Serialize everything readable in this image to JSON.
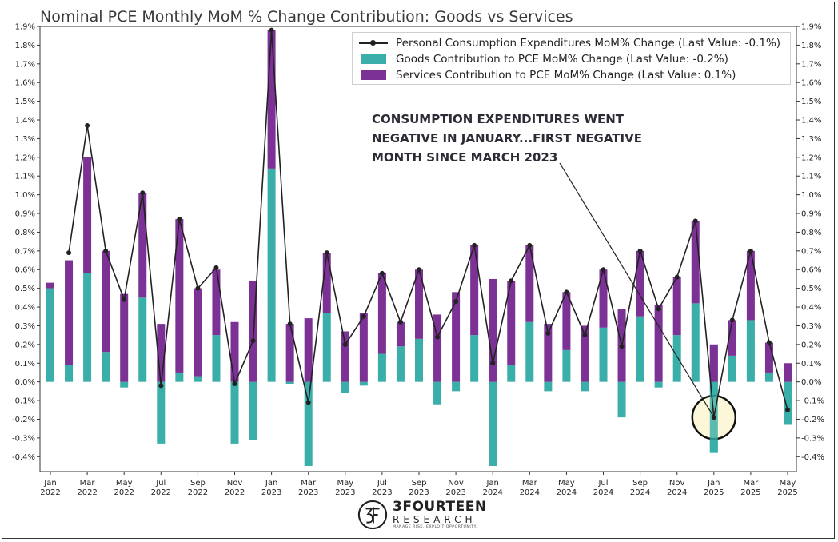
{
  "title": "Nominal PCE Monthly MoM % Change Contribution: Goods vs Services",
  "legend": {
    "pce_label": "Personal Consumption Expenditures MoM% Change (Last Value: -0.1%)",
    "goods_label": "Goods Contribution to PCE MoM% Change (Last Value: -0.2%)",
    "services_label": "Services Contribution to PCE MoM% Change (Last Value: 0.1%)"
  },
  "annotation": "CONSUMPTION EXPENDITURES WENT\nNEGATIVE IN JANUARY...FIRST NEGATIVE\nMONTH SINCE MARCH 2023",
  "logo": {
    "name": "3FOURTEEN",
    "sub": "RESEARCH",
    "tagline": "MANAGE RISK. EXPLOIT OPPORTUNITY."
  },
  "colors": {
    "goods": "#3aafa9",
    "services": "#7b3294",
    "pce_line": "#222222",
    "highlight_fill": "#fbf6d2",
    "highlight_stroke": "#111111"
  },
  "chart_data": {
    "type": "bar",
    "stacked": true,
    "categories": [
      "Jan 2022",
      "Feb 2022",
      "Mar 2022",
      "Apr 2022",
      "May 2022",
      "Jun 2022",
      "Jul 2022",
      "Aug 2022",
      "Sep 2022",
      "Oct 2022",
      "Nov 2022",
      "Dec 2022",
      "Jan 2023",
      "Feb 2023",
      "Mar 2023",
      "Apr 2023",
      "May 2023",
      "Jun 2023",
      "Jul 2023",
      "Aug 2023",
      "Sep 2023",
      "Oct 2023",
      "Nov 2023",
      "Dec 2023",
      "Jan 2024",
      "Feb 2024",
      "Mar 2024",
      "Apr 2024",
      "May 2024",
      "Jun 2024",
      "Jul 2024",
      "Aug 2024",
      "Sep 2024",
      "Oct 2024",
      "Nov 2024",
      "Dec 2024",
      "Jan 2025",
      "Feb 2025",
      "Mar 2025",
      "Apr 2025",
      "May 2025"
    ],
    "x_tick_labels": [
      {
        "month": "Jan",
        "year": "2022"
      },
      {
        "month": "Mar",
        "year": "2022"
      },
      {
        "month": "May",
        "year": "2022"
      },
      {
        "month": "Jul",
        "year": "2022"
      },
      {
        "month": "Sep",
        "year": "2022"
      },
      {
        "month": "Nov",
        "year": "2022"
      },
      {
        "month": "Jan",
        "year": "2023"
      },
      {
        "month": "Mar",
        "year": "2023"
      },
      {
        "month": "May",
        "year": "2023"
      },
      {
        "month": "Jul",
        "year": "2023"
      },
      {
        "month": "Sep",
        "year": "2023"
      },
      {
        "month": "Nov",
        "year": "2023"
      },
      {
        "month": "Jan",
        "year": "2024"
      },
      {
        "month": "Mar",
        "year": "2024"
      },
      {
        "month": "May",
        "year": "2024"
      },
      {
        "month": "Jul",
        "year": "2024"
      },
      {
        "month": "Sep",
        "year": "2024"
      },
      {
        "month": "Nov",
        "year": "2024"
      },
      {
        "month": "Jan",
        "year": "2025"
      },
      {
        "month": "Mar",
        "year": "2025"
      },
      {
        "month": "May",
        "year": "2025"
      }
    ],
    "x_tick_every": 2,
    "series": [
      {
        "name": "Goods Contribution to PCE MoM% Change",
        "kind": "bar",
        "values": [
          0.5,
          0.09,
          0.58,
          0.16,
          -0.03,
          0.45,
          -0.33,
          0.05,
          0.03,
          0.25,
          -0.33,
          -0.31,
          1.14,
          -0.01,
          -0.45,
          0.37,
          -0.06,
          -0.02,
          0.15,
          0.19,
          0.23,
          -0.12,
          -0.05,
          0.25,
          -0.45,
          0.09,
          0.32,
          -0.05,
          0.17,
          -0.05,
          0.29,
          -0.19,
          0.35,
          -0.03,
          0.25,
          0.42,
          -0.38,
          0.14,
          0.33,
          0.05,
          -0.23
        ]
      },
      {
        "name": "Services Contribution to PCE MoM% Change",
        "kind": "bar",
        "values": [
          0.03,
          0.56,
          0.62,
          0.54,
          0.47,
          0.56,
          0.31,
          0.82,
          0.47,
          0.35,
          0.32,
          0.54,
          0.74,
          0.31,
          0.34,
          0.32,
          0.27,
          0.37,
          0.43,
          0.13,
          0.37,
          0.36,
          0.48,
          0.48,
          0.55,
          0.45,
          0.41,
          0.31,
          0.31,
          0.3,
          0.31,
          0.39,
          0.35,
          0.41,
          0.31,
          0.44,
          0.2,
          0.19,
          0.37,
          0.16,
          0.1
        ]
      },
      {
        "name": "Personal Consumption Expenditures MoM% Change",
        "kind": "line",
        "values": [
          null,
          0.69,
          1.37,
          0.7,
          0.44,
          1.01,
          -0.02,
          0.87,
          0.5,
          0.61,
          -0.01,
          0.22,
          1.88,
          0.31,
          -0.11,
          0.69,
          0.2,
          0.35,
          0.58,
          0.32,
          0.6,
          0.24,
          0.43,
          0.73,
          0.1,
          0.54,
          0.73,
          0.26,
          0.48,
          0.25,
          0.6,
          0.19,
          0.7,
          0.39,
          0.56,
          0.86,
          -0.19,
          0.33,
          0.7,
          0.21,
          -0.15
        ]
      }
    ],
    "y_ticks": [
      "-0.4%",
      "-0.3%",
      "-0.2%",
      "-0.1%",
      "0.0%",
      "0.1%",
      "0.2%",
      "0.3%",
      "0.4%",
      "0.5%",
      "0.6%",
      "0.7%",
      "0.8%",
      "0.9%",
      "1.0%",
      "1.1%",
      "1.2%",
      "1.3%",
      "1.4%",
      "1.5%",
      "1.6%",
      "1.7%",
      "1.8%",
      "1.9%"
    ],
    "ylim": [
      -0.48,
      1.9
    ],
    "y_unit": "%",
    "grid": false,
    "legend_position": "top-right",
    "highlight_category": "Jan 2025"
  }
}
